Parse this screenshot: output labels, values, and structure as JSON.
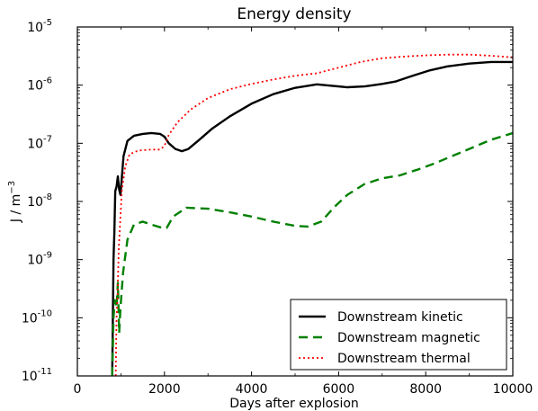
{
  "chart_data": {
    "type": "line",
    "title": "Energy density",
    "xlabel": "Days after explosion",
    "ylabel": "J / m",
    "ylabel_exponent": "−3",
    "xlim": [
      0,
      10000
    ],
    "ylim_log10": [
      -11,
      -5
    ],
    "yscale": "log",
    "grid": false,
    "legend_placement": "bottom-right",
    "x_ticks": [
      {
        "value": 0,
        "label": "0"
      },
      {
        "value": 2000,
        "label": "2000"
      },
      {
        "value": 4000,
        "label": "4000"
      },
      {
        "value": 6000,
        "label": "6000"
      },
      {
        "value": 8000,
        "label": "8000"
      },
      {
        "value": 10000,
        "label": "10000"
      }
    ],
    "y_ticks": [
      {
        "exp": -11,
        "base": "10",
        "sup": "-11"
      },
      {
        "exp": -10,
        "base": "10",
        "sup": "-10"
      },
      {
        "exp": -9,
        "base": "10",
        "sup": "-9"
      },
      {
        "exp": -8,
        "base": "10",
        "sup": "-8"
      },
      {
        "exp": -7,
        "base": "10",
        "sup": "-7"
      },
      {
        "exp": -6,
        "base": "10",
        "sup": "-6"
      },
      {
        "exp": -5,
        "base": "10",
        "sup": "-5"
      }
    ],
    "series": [
      {
        "name": "Downstream kinetic",
        "color": "#000000",
        "dash": "solid",
        "points": [
          [
            800,
            1e-11
          ],
          [
            815,
            1e-10
          ],
          [
            830,
            1e-09
          ],
          [
            850,
            3e-09
          ],
          [
            870,
            1.5e-08
          ],
          [
            900,
            1.8e-08
          ],
          [
            930,
            2.7e-08
          ],
          [
            960,
            1.6e-08
          ],
          [
            990,
            1.3e-08
          ],
          [
            1020,
            2.5e-08
          ],
          [
            1060,
            6e-08
          ],
          [
            1150,
            1.1e-07
          ],
          [
            1300,
            1.35e-07
          ],
          [
            1500,
            1.45e-07
          ],
          [
            1700,
            1.5e-07
          ],
          [
            1900,
            1.45e-07
          ],
          [
            2000,
            1.3e-07
          ],
          [
            2100,
            1e-07
          ],
          [
            2250,
            8e-08
          ],
          [
            2400,
            7.3e-08
          ],
          [
            2550,
            8e-08
          ],
          [
            2800,
            1.15e-07
          ],
          [
            3100,
            1.8e-07
          ],
          [
            3500,
            2.9e-07
          ],
          [
            4000,
            4.8e-07
          ],
          [
            4500,
            7e-07
          ],
          [
            5000,
            9e-07
          ],
          [
            5500,
            1.03e-06
          ],
          [
            5800,
            9.8e-07
          ],
          [
            6200,
            9.2e-07
          ],
          [
            6600,
            9.5e-07
          ],
          [
            7000,
            1.05e-06
          ],
          [
            7300,
            1.15e-06
          ],
          [
            7700,
            1.45e-06
          ],
          [
            8100,
            1.8e-06
          ],
          [
            8500,
            2.1e-06
          ],
          [
            9000,
            2.35e-06
          ],
          [
            9500,
            2.5e-06
          ],
          [
            10000,
            2.5e-06
          ]
        ]
      },
      {
        "name": "Downstream magnetic",
        "color": "#008000",
        "dash": "10,6",
        "points": [
          [
            800,
            1e-11
          ],
          [
            830,
            1e-10
          ],
          [
            860,
            2e-10
          ],
          [
            900,
            1.5e-10
          ],
          [
            930,
            4e-10
          ],
          [
            960,
            5.5e-11
          ],
          [
            990,
            1.5e-10
          ],
          [
            1050,
            6e-10
          ],
          [
            1150,
            2.2e-09
          ],
          [
            1300,
            4e-09
          ],
          [
            1500,
            4.5e-09
          ],
          [
            1700,
            4e-09
          ],
          [
            1900,
            3.6e-09
          ],
          [
            2050,
            3.5e-09
          ],
          [
            2200,
            5.5e-09
          ],
          [
            2500,
            7.8e-09
          ],
          [
            3000,
            7.5e-09
          ],
          [
            3500,
            6.5e-09
          ],
          [
            4000,
            5.5e-09
          ],
          [
            4500,
            4.5e-09
          ],
          [
            5000,
            3.8e-09
          ],
          [
            5300,
            3.7e-09
          ],
          [
            5600,
            4.5e-09
          ],
          [
            5900,
            8e-09
          ],
          [
            6200,
            1.3e-08
          ],
          [
            6600,
            2e-08
          ],
          [
            7000,
            2.5e-08
          ],
          [
            7400,
            2.8e-08
          ],
          [
            7800,
            3.5e-08
          ],
          [
            8200,
            4.5e-08
          ],
          [
            8600,
            6e-08
          ],
          [
            9000,
            8e-08
          ],
          [
            9500,
            1.15e-07
          ],
          [
            10000,
            1.5e-07
          ]
        ]
      },
      {
        "name": "Downstream thermal",
        "color": "#ff0000",
        "dash": "2,3",
        "points": [
          [
            880,
            1e-11
          ],
          [
            900,
            1e-10
          ],
          [
            920,
            2e-10
          ],
          [
            950,
            1.5e-09
          ],
          [
            980,
            4e-09
          ],
          [
            1020,
            1.5e-08
          ],
          [
            1100,
            4e-08
          ],
          [
            1200,
            6.5e-08
          ],
          [
            1400,
            7.5e-08
          ],
          [
            1700,
            7.8e-08
          ],
          [
            1900,
            7.8e-08
          ],
          [
            2000,
            9e-08
          ],
          [
            2100,
            1.4e-07
          ],
          [
            2300,
            2.3e-07
          ],
          [
            2600,
            3.8e-07
          ],
          [
            3000,
            6e-07
          ],
          [
            3500,
            8.5e-07
          ],
          [
            4000,
            1.05e-06
          ],
          [
            4500,
            1.25e-06
          ],
          [
            5000,
            1.45e-06
          ],
          [
            5500,
            1.6e-06
          ],
          [
            6000,
            2e-06
          ],
          [
            6500,
            2.5e-06
          ],
          [
            7000,
            2.9e-06
          ],
          [
            7500,
            3.1e-06
          ],
          [
            8000,
            3.25e-06
          ],
          [
            8500,
            3.35e-06
          ],
          [
            9000,
            3.35e-06
          ],
          [
            9500,
            3.2e-06
          ],
          [
            10000,
            3e-06
          ]
        ]
      }
    ]
  }
}
